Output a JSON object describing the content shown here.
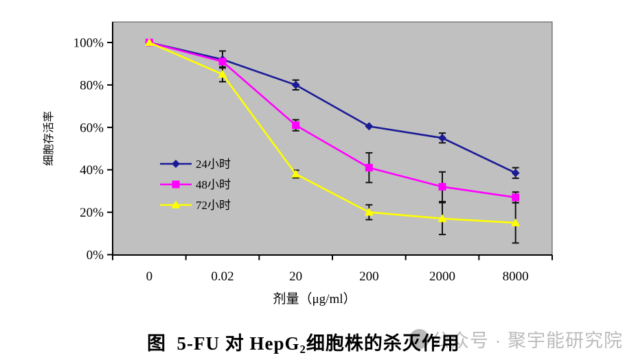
{
  "chart_data": {
    "type": "line",
    "title": "",
    "xlabel": "剂量（μg/ml）",
    "ylabel": "细胞存活率",
    "x_categories": [
      "0",
      "0.02",
      "20",
      "200",
      "2000",
      "8000"
    ],
    "y_tick_labels": [
      "100%",
      "80%",
      "60%",
      "40%",
      "20%",
      "0%"
    ],
    "ylim": [
      0,
      100
    ],
    "y_tick_step": 20,
    "grid": "off",
    "plot_background": "#c0c0c0",
    "axis_color": "#000000",
    "error_bar_color": "#111111",
    "legend_position": "inside-middle-left",
    "series": [
      {
        "name": "24小时",
        "color": "#1b1b96",
        "marker": "diamond",
        "values": [
          100,
          92,
          80,
          60.5,
          55,
          38.5
        ],
        "errors": [
          0,
          4,
          2.3,
          0,
          2.3,
          2.5
        ]
      },
      {
        "name": "48小时",
        "color": "#ff00ff",
        "marker": "square",
        "values": [
          100,
          91,
          61,
          41,
          32,
          27
        ],
        "errors": [
          0,
          0,
          2.6,
          7,
          7,
          2.5
        ]
      },
      {
        "name": "72小时",
        "color": "#ffff00",
        "marker": "triangle",
        "values": [
          100,
          85,
          38,
          20,
          17,
          15
        ],
        "errors": [
          0,
          3.5,
          1.8,
          3.5,
          7.5,
          9.5
        ]
      }
    ]
  },
  "caption": {
    "prefix": "图  5-FU 对 HepG",
    "subscript": "2",
    "suffix": "细胞株的杀灭作用"
  },
  "watermark": {
    "text": "公众号 · 聚宇能研究院"
  }
}
